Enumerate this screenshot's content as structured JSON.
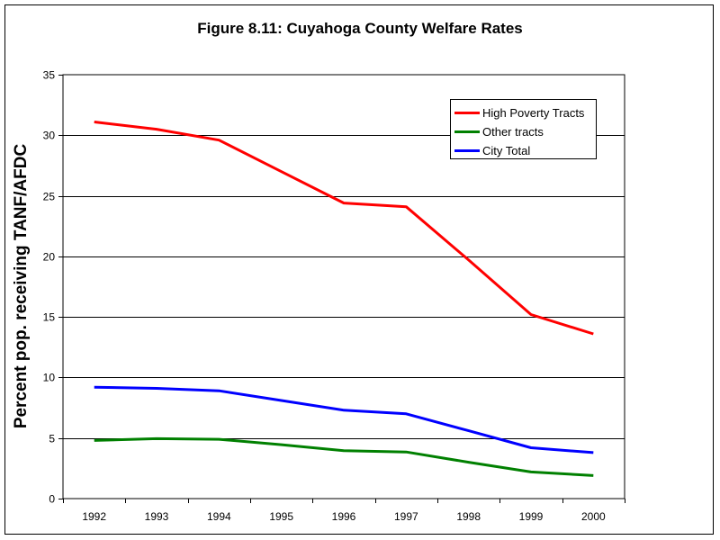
{
  "chart_data": {
    "type": "line",
    "title": "Figure 8.11: Cuyahoga County Welfare Rates",
    "xlabel": "",
    "ylabel": "Percent pop. receiving TANF/AFDC",
    "categories": [
      "1992",
      "1993",
      "1994",
      "1995",
      "1996",
      "1997",
      "1998",
      "1999",
      "2000"
    ],
    "ylim": [
      0,
      35
    ],
    "yticks": [
      0,
      5,
      10,
      15,
      20,
      25,
      30,
      35
    ],
    "grid": true,
    "legend_position": "top-right",
    "series": [
      {
        "name": "High Poverty Tracts",
        "color": "#ff0000",
        "values": [
          31.1,
          30.5,
          29.6,
          27.0,
          24.4,
          24.1,
          19.7,
          15.2,
          13.6
        ]
      },
      {
        "name": "Other tracts",
        "color": "#008000",
        "values": [
          4.8,
          4.95,
          4.9,
          4.45,
          3.95,
          3.85,
          3.0,
          2.2,
          1.9
        ]
      },
      {
        "name": "City Total",
        "color": "#0000ff",
        "values": [
          9.2,
          9.1,
          8.9,
          8.1,
          7.3,
          7.0,
          5.6,
          4.2,
          3.8
        ]
      }
    ]
  }
}
